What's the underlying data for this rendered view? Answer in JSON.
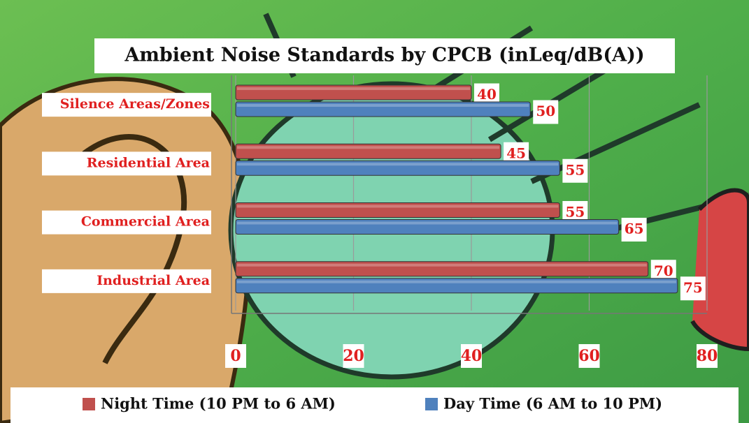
{
  "chart_data": {
    "type": "bar",
    "orientation": "horizontal",
    "title": "Ambient Noise Standards by CPCB (inLeq/dB(A))",
    "categories": [
      "Silence Areas/Zones",
      "Residential Area",
      "Commercial Area",
      "Industrial Area"
    ],
    "series": [
      {
        "name": "Night Time (10 PM to 6 AM)",
        "color": "#c0504d",
        "values": [
          40,
          45,
          55,
          70
        ]
      },
      {
        "name": "Day Time (6 AM to 10 PM)",
        "color": "#4f81bd",
        "values": [
          50,
          55,
          65,
          75
        ]
      }
    ],
    "xlim": [
      0,
      80
    ],
    "xticks": [
      0,
      20,
      40,
      60,
      80
    ],
    "grid": true,
    "legend": "bottom"
  }
}
